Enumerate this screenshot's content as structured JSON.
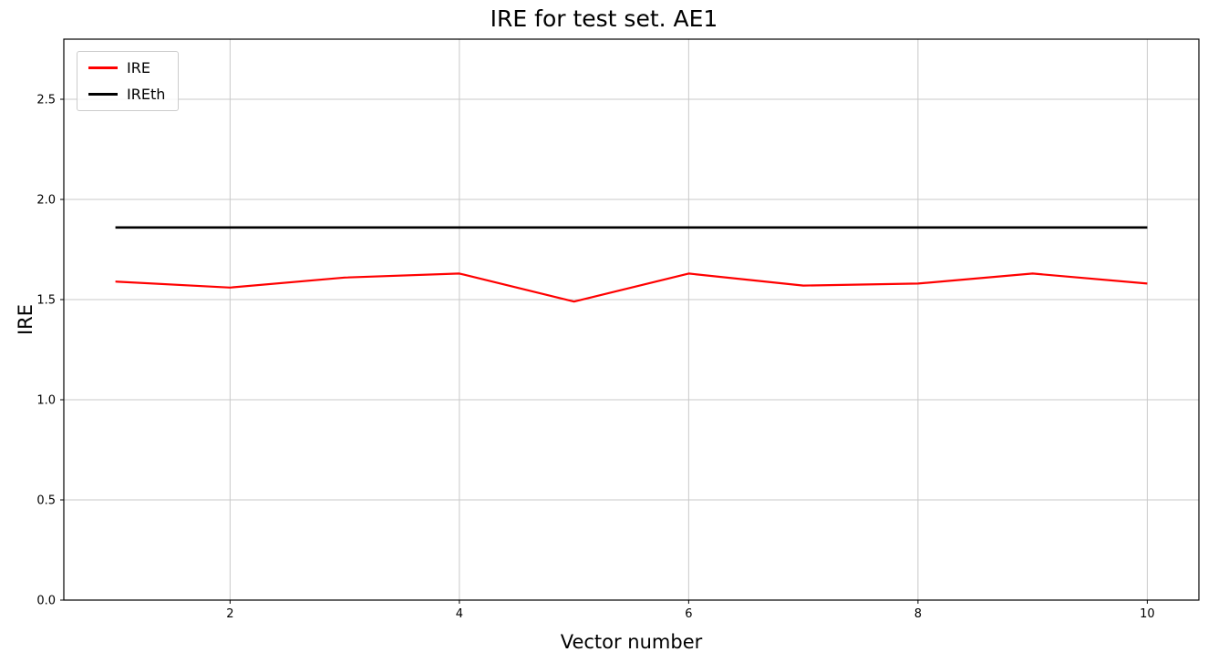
{
  "chart_data": {
    "type": "line",
    "title": "IRE for test set. AE1",
    "xlabel": "Vector number",
    "ylabel": "IRE",
    "x": [
      1,
      2,
      3,
      4,
      5,
      6,
      7,
      8,
      9,
      10
    ],
    "series": [
      {
        "name": "IRE",
        "color": "#ff0000",
        "linewidth": 2.2,
        "values": [
          1.59,
          1.56,
          1.61,
          1.63,
          1.49,
          1.63,
          1.57,
          1.58,
          1.63,
          1.58
        ]
      },
      {
        "name": "IREth",
        "color": "#000000",
        "linewidth": 2.6,
        "values": [
          1.86,
          1.86,
          1.86,
          1.86,
          1.86,
          1.86,
          1.86,
          1.86,
          1.86,
          1.86
        ]
      }
    ],
    "xlim": [
      0.55,
      10.45
    ],
    "ylim": [
      0,
      2.8
    ],
    "xticks": [
      2,
      4,
      6,
      8,
      10
    ],
    "yticks": [
      0.0,
      0.5,
      1.0,
      1.5,
      2.0,
      2.5
    ],
    "xtick_labels": [
      "2",
      "4",
      "6",
      "8",
      "10"
    ],
    "ytick_labels": [
      "0.0",
      "0.5",
      "1.0",
      "1.5",
      "2.0",
      "2.5"
    ],
    "grid": true,
    "grid_color": "#c9c9c9",
    "spine_color": "#000000",
    "legend_position": "upper left"
  }
}
